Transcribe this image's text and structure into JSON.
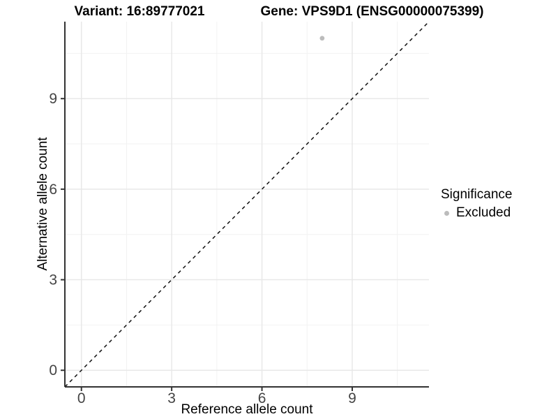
{
  "title": {
    "variant": "Variant: 16:89777021",
    "gene": "Gene: VPS9D1 (ENSG00000075399)"
  },
  "chart_data": {
    "type": "scatter",
    "title": "Variant: 16:89777021   Gene: VPS9D1 (ENSG00000075399)",
    "xlabel": "Reference allele count",
    "ylabel": "Alternative allele count",
    "xlim": [
      -0.55,
      11.55
    ],
    "ylim": [
      -0.55,
      11.55
    ],
    "xticks": [
      0,
      3,
      6,
      9
    ],
    "yticks": [
      0,
      3,
      6,
      9
    ],
    "xticks_minor": [
      1.5,
      4.5,
      7.5,
      10.5
    ],
    "yticks_minor": [
      1.5,
      4.5,
      7.5,
      10.5
    ],
    "grid": "major_and_minor",
    "points": [
      {
        "x": 8,
        "y": 11,
        "series": "Excluded"
      }
    ],
    "identity_line": {
      "style": "dashed",
      "slope": 1,
      "intercept": 0
    },
    "legend": {
      "title": "Significance",
      "position": "right",
      "items": [
        {
          "label": "Excluded",
          "color": "#bcbcbc",
          "marker": "point"
        }
      ]
    },
    "colors": {
      "point": "#bcbcbc",
      "grid_major": "#e8e8e8",
      "grid_minor": "#f2f2f2",
      "axis_line": "#333333",
      "tick_text": "#444444",
      "dashed_line": "#111111"
    }
  }
}
